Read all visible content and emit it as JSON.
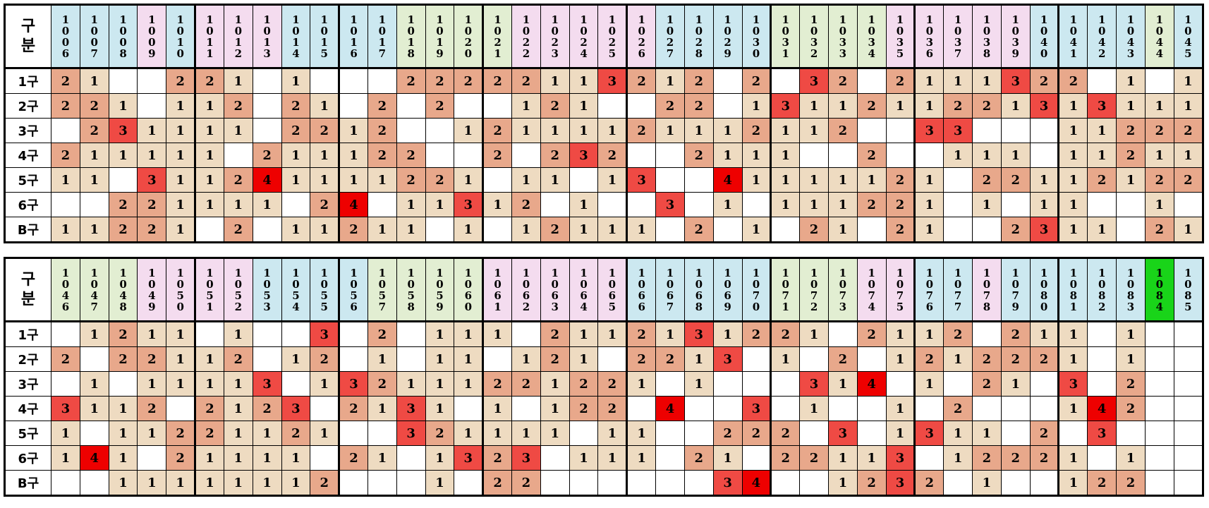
{
  "corner_label": "구\n분",
  "row_labels": [
    "1구",
    "2구",
    "3구",
    "4구",
    "5구",
    "6구",
    "B구"
  ],
  "highlight_round": "1084",
  "palette": {
    "header_blue": "#cce8f0",
    "header_pink": "#f4dcef",
    "header_green": "#e2eed2",
    "header_current": "#19d419",
    "count_1": "#eedbc1",
    "count_2": "#e8a88b",
    "count_3": "#ef4a44",
    "count_4": "#ee0000"
  },
  "sections": [
    {
      "rounds": [
        "1006",
        "1007",
        "1008",
        "1009",
        "1010",
        "1011",
        "1012",
        "1013",
        "1014",
        "1015",
        "1016",
        "1017",
        "1018",
        "1019",
        "1020",
        "1021",
        "1022",
        "1023",
        "1024",
        "1025",
        "1026",
        "1027",
        "1028",
        "1029",
        "1030",
        "1031",
        "1032",
        "1033",
        "1034",
        "1035",
        "1036",
        "1037",
        "1038",
        "1039",
        "1040",
        "1041",
        "1042",
        "1043",
        "1044",
        "1045"
      ],
      "header_colors": [
        "blue",
        "blue",
        "blue",
        "pink",
        "blue",
        "pink",
        "pink",
        "pink",
        "blue",
        "blue",
        "blue",
        "blue",
        "green",
        "green",
        "green",
        "green",
        "pink",
        "pink",
        "pink",
        "pink",
        "pink",
        "blue",
        "blue",
        "blue",
        "blue",
        "green",
        "green",
        "green",
        "green",
        "pink",
        "pink",
        "pink",
        "pink",
        "pink",
        "blue",
        "blue",
        "blue",
        "blue",
        "green",
        "blue"
      ],
      "rows": [
        [
          2,
          1,
          0,
          0,
          2,
          2,
          1,
          0,
          1,
          0,
          0,
          0,
          2,
          2,
          2,
          2,
          2,
          1,
          1,
          3,
          2,
          1,
          2,
          0,
          2,
          0,
          3,
          2,
          0,
          2,
          1,
          1,
          1,
          3,
          2,
          2,
          0,
          1,
          0,
          1
        ],
        [
          2,
          2,
          1,
          0,
          1,
          1,
          2,
          0,
          2,
          1,
          0,
          2,
          0,
          2,
          0,
          0,
          1,
          2,
          1,
          0,
          0,
          2,
          2,
          0,
          1,
          3,
          1,
          1,
          2,
          1,
          1,
          2,
          2,
          1,
          3,
          1,
          3,
          1,
          1,
          1
        ],
        [
          0,
          2,
          3,
          1,
          1,
          1,
          1,
          0,
          2,
          2,
          1,
          2,
          0,
          0,
          1,
          2,
          1,
          1,
          1,
          1,
          2,
          1,
          1,
          1,
          2,
          1,
          1,
          2,
          0,
          0,
          3,
          3,
          0,
          0,
          0,
          1,
          1,
          2,
          2,
          2
        ],
        [
          2,
          1,
          1,
          1,
          1,
          1,
          0,
          2,
          1,
          1,
          1,
          2,
          2,
          0,
          0,
          2,
          0,
          2,
          3,
          2,
          0,
          0,
          2,
          1,
          1,
          1,
          0,
          0,
          2,
          0,
          0,
          1,
          1,
          1,
          0,
          1,
          1,
          2,
          1,
          1
        ],
        [
          1,
          1,
          0,
          3,
          1,
          1,
          2,
          4,
          1,
          1,
          1,
          1,
          2,
          2,
          1,
          0,
          1,
          1,
          0,
          1,
          3,
          0,
          0,
          4,
          1,
          1,
          1,
          1,
          1,
          2,
          1,
          0,
          2,
          2,
          1,
          1,
          2,
          1,
          2,
          2
        ],
        [
          0,
          0,
          2,
          2,
          1,
          1,
          1,
          1,
          0,
          2,
          4,
          0,
          1,
          1,
          3,
          1,
          2,
          0,
          1,
          0,
          0,
          3,
          0,
          1,
          0,
          1,
          1,
          1,
          2,
          2,
          1,
          0,
          1,
          0,
          1,
          1,
          0,
          0,
          1,
          0
        ],
        [
          1,
          1,
          2,
          2,
          1,
          0,
          2,
          0,
          1,
          1,
          2,
          1,
          1,
          0,
          1,
          0,
          1,
          2,
          1,
          1,
          1,
          0,
          2,
          0,
          1,
          0,
          2,
          1,
          0,
          2,
          1,
          0,
          0,
          2,
          3,
          1,
          1,
          0,
          2,
          1
        ]
      ]
    },
    {
      "rounds": [
        "1046",
        "1047",
        "1048",
        "1049",
        "1050",
        "1051",
        "1052",
        "1053",
        "1054",
        "1055",
        "1056",
        "1057",
        "1058",
        "1059",
        "1060",
        "1061",
        "1062",
        "1063",
        "1064",
        "1065",
        "1066",
        "1067",
        "1068",
        "1069",
        "1070",
        "1071",
        "1072",
        "1073",
        "1074",
        "1075",
        "1076",
        "1077",
        "1078",
        "1079",
        "1080",
        "1081",
        "1082",
        "1083",
        "1084",
        "1085"
      ],
      "header_colors": [
        "green",
        "green",
        "green",
        "pink",
        "pink",
        "pink",
        "pink",
        "blue",
        "blue",
        "blue",
        "blue",
        "green",
        "green",
        "green",
        "green",
        "pink",
        "pink",
        "pink",
        "pink",
        "pink",
        "blue",
        "blue",
        "blue",
        "blue",
        "blue",
        "green",
        "green",
        "green",
        "pink",
        "pink",
        "blue",
        "blue",
        "pink",
        "blue",
        "blue",
        "blue",
        "blue",
        "blue",
        "current",
        "blue"
      ],
      "rows": [
        [
          0,
          1,
          2,
          1,
          1,
          0,
          1,
          0,
          0,
          3,
          0,
          2,
          0,
          1,
          1,
          1,
          0,
          2,
          1,
          1,
          2,
          1,
          3,
          1,
          2,
          2,
          1,
          0,
          2,
          1,
          1,
          2,
          0,
          2,
          1,
          1,
          0,
          1,
          0,
          0
        ],
        [
          2,
          0,
          2,
          2,
          1,
          1,
          2,
          0,
          1,
          2,
          0,
          1,
          0,
          1,
          1,
          0,
          1,
          2,
          1,
          0,
          2,
          2,
          1,
          3,
          0,
          1,
          0,
          2,
          0,
          1,
          2,
          1,
          2,
          2,
          2,
          1,
          0,
          1,
          0,
          0
        ],
        [
          0,
          1,
          0,
          1,
          1,
          1,
          1,
          3,
          0,
          1,
          3,
          2,
          1,
          1,
          1,
          2,
          2,
          1,
          2,
          2,
          1,
          0,
          1,
          0,
          0,
          0,
          3,
          1,
          4,
          0,
          1,
          0,
          2,
          1,
          0,
          3,
          0,
          2,
          0,
          0
        ],
        [
          3,
          1,
          1,
          2,
          0,
          2,
          1,
          2,
          3,
          0,
          2,
          1,
          3,
          1,
          0,
          1,
          0,
          1,
          2,
          2,
          0,
          4,
          0,
          0,
          3,
          0,
          1,
          0,
          0,
          1,
          0,
          2,
          0,
          0,
          0,
          1,
          4,
          2,
          0,
          0
        ],
        [
          1,
          0,
          1,
          1,
          2,
          2,
          1,
          1,
          2,
          1,
          0,
          0,
          3,
          2,
          1,
          1,
          1,
          1,
          0,
          1,
          1,
          0,
          0,
          2,
          2,
          2,
          0,
          3,
          0,
          1,
          3,
          1,
          1,
          0,
          2,
          0,
          3,
          0,
          0,
          0
        ],
        [
          1,
          4,
          1,
          0,
          2,
          1,
          1,
          1,
          1,
          0,
          2,
          1,
          0,
          1,
          3,
          2,
          3,
          0,
          1,
          1,
          1,
          0,
          2,
          1,
          0,
          2,
          2,
          1,
          1,
          3,
          0,
          1,
          2,
          2,
          2,
          1,
          0,
          1,
          0,
          0
        ],
        [
          0,
          0,
          1,
          1,
          1,
          1,
          1,
          1,
          1,
          2,
          0,
          0,
          0,
          1,
          0,
          2,
          2,
          0,
          0,
          0,
          0,
          0,
          0,
          3,
          4,
          0,
          0,
          1,
          2,
          3,
          2,
          0,
          1,
          0,
          0,
          1,
          2,
          2,
          0,
          0
        ]
      ]
    }
  ]
}
